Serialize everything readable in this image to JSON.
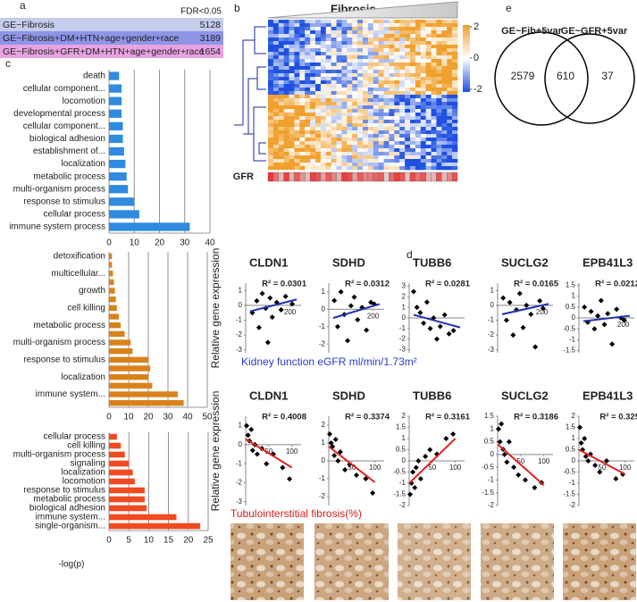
{
  "panel_labels": [
    "a",
    "b",
    "c",
    "d",
    "e"
  ],
  "table": {
    "header": "FDR<0.05",
    "rows": [
      [
        "GE~Fibrosis",
        5128
      ],
      [
        "GE~Fibrosis+DM+HTN+age+gender+race",
        3189
      ],
      [
        "GE~Fibrosis+GFR+DM+HTN+age+gender+race",
        1654
      ]
    ]
  },
  "heatmap": {
    "title": "Fibrosis",
    "colorbar_ticks": [
      2,
      0,
      -2
    ],
    "row_label": "GFR"
  },
  "venn": {
    "sets": [
      "GE~Fib+5var",
      "GE~GFR+5var"
    ],
    "counts": [
      2579,
      610,
      37
    ]
  },
  "d_labels": {
    "ylabel": "Relative gene expression",
    "top_xlabel": "Kidney function eGFR ml/min/1.73m²",
    "bottom_xlabel": "Tubulointerstitial fibrosis(%)"
  },
  "chart_data": [
    {
      "type": "bar",
      "orientation": "horizontal",
      "color": "#2e8be0",
      "grid": true,
      "xlim": [
        0,
        40
      ],
      "xticks": [
        0,
        10,
        20,
        30,
        40
      ],
      "categories": [
        "death",
        "cellular component...",
        "locomotion",
        "developmental process",
        "cellular component...",
        "biological adhesion",
        "establishment of...",
        "localization",
        "metabolic process",
        "multi-organism process",
        "response to stimulus",
        "cellular process",
        "immune system process"
      ],
      "values": [
        4,
        5,
        5,
        5,
        5.5,
        5.5,
        6,
        6.5,
        7,
        7.5,
        10,
        12,
        32
      ]
    },
    {
      "type": "bar",
      "orientation": "horizontal",
      "color": "#d9821a",
      "grid": true,
      "xlim": [
        0,
        50
      ],
      "xticks": [
        0,
        10,
        20,
        30,
        40,
        50
      ],
      "categories": [
        "detoxification",
        null,
        "multicellular...",
        null,
        "growth",
        null,
        "cell killing",
        null,
        "metabolic process",
        null,
        "multi-organism process",
        null,
        "response to stimulus",
        null,
        "localization",
        null,
        "immune system...",
        null
      ],
      "values": [
        1.5,
        1.5,
        2,
        2.5,
        3,
        3.5,
        4,
        5,
        6,
        8,
        11,
        12,
        20,
        21,
        20,
        22,
        35,
        38
      ]
    },
    {
      "type": "bar",
      "orientation": "horizontal",
      "color": "#f04a20",
      "grid": true,
      "xlim": [
        0,
        25
      ],
      "xticks": [
        0,
        5,
        10,
        15,
        20,
        25
      ],
      "xlabel": "-log(p)",
      "categories": [
        "cellular process",
        "cell killing",
        "multi-organism process",
        "signaling",
        "localization",
        "locomotion",
        "response to stimulus",
        "metabolic process",
        "biological adhesion",
        "immune system...",
        "single-organism..."
      ],
      "values": [
        2,
        3,
        4,
        5,
        6,
        6.5,
        9,
        9,
        9.5,
        17,
        23
      ]
    },
    {
      "type": "scatter",
      "title": "CLDN1",
      "annotation": "R² = 0.0301",
      "color": "#000000",
      "xlim": [
        0,
        250
      ],
      "ylim": [
        -3.2,
        1.5
      ],
      "xticks": [
        200
      ],
      "yticks": [
        1,
        0,
        -1,
        -2,
        -3
      ],
      "x": [
        30,
        50,
        60,
        75,
        90,
        100,
        110,
        120,
        140,
        160,
        180,
        210
      ],
      "values": [
        -0.5,
        0.3,
        -1.5,
        0.8,
        -0.2,
        -2.5,
        0.5,
        -0.8,
        0.2,
        -0.3,
        0.6,
        0.1
      ],
      "trend": {
        "color": "#1f2fb0",
        "x": [
          20,
          230
        ],
        "values": [
          -0.4,
          0.4
        ]
      }
    },
    {
      "type": "scatter",
      "title": "SDHD",
      "annotation": "R² = 0.0312",
      "color": "#000000",
      "xlim": [
        0,
        250
      ],
      "ylim": [
        -2.5,
        1.5
      ],
      "xticks": [
        200
      ],
      "yticks": [
        1,
        0,
        -1,
        -2
      ],
      "x": [
        25,
        40,
        55,
        70,
        85,
        100,
        115,
        130,
        150,
        170,
        190,
        205
      ],
      "values": [
        0.5,
        -1,
        1,
        -0.3,
        -1.8,
        0.2,
        0.7,
        -0.6,
        0.1,
        -1.2,
        0.4,
        0.3
      ],
      "trend": {
        "color": "#1f2fb0",
        "x": [
          20,
          230
        ],
        "values": [
          -0.5,
          0.3
        ]
      }
    },
    {
      "type": "scatter",
      "title": "TUBB6",
      "annotation": "R² = 0.0281",
      "color": "#000000",
      "xlim": [
        0,
        250
      ],
      "ylim": [
        -3.3,
        3.3
      ],
      "xticks": [],
      "yticks": [
        3,
        2,
        1,
        0,
        -1,
        -2,
        -3
      ],
      "x": [
        20,
        35,
        50,
        65,
        80,
        95,
        110,
        125,
        140,
        160,
        180,
        200
      ],
      "values": [
        2.5,
        1,
        0.5,
        -0.5,
        1.5,
        -1,
        0,
        -2,
        -0.8,
        0.3,
        -1.5,
        -1.2
      ],
      "trend": {
        "color": "#1f2fb0",
        "x": [
          20,
          230
        ],
        "values": [
          0.3,
          -0.9
        ]
      }
    },
    {
      "type": "scatter",
      "title": "SUCLG2",
      "annotation": "R² = 0.0165",
      "color": "#000000",
      "xlim": [
        0,
        250
      ],
      "ylim": [
        -3.2,
        1.5
      ],
      "xticks": [
        200
      ],
      "yticks": [
        1,
        0,
        -1,
        -2,
        -3
      ],
      "x": [
        25,
        40,
        55,
        70,
        85,
        100,
        115,
        130,
        150,
        170,
        190,
        205
      ],
      "values": [
        0.5,
        -1,
        0.2,
        -2,
        -0.3,
        0.8,
        -1.5,
        0,
        -0.6,
        -2.8,
        0.3,
        -0.2
      ],
      "trend": {
        "color": "#1f2fb0",
        "x": [
          20,
          230
        ],
        "values": [
          -0.6,
          0.1
        ]
      }
    },
    {
      "type": "scatter",
      "title": "EPB41L3",
      "annotation": "R² = 0.0212",
      "color": "#000000",
      "xlim": [
        0,
        250
      ],
      "ylim": [
        -1.6,
        1.6
      ],
      "xticks": [
        200
      ],
      "yticks": [
        1.5,
        1,
        0.5,
        0,
        -0.5,
        -1,
        -1.5
      ],
      "x": [
        25,
        40,
        55,
        70,
        85,
        100,
        115,
        130,
        150,
        170,
        190,
        205
      ],
      "values": [
        0.5,
        -0.2,
        0.3,
        -0.5,
        0.1,
        0.8,
        -0.3,
        0.2,
        -1.2,
        0.4,
        0,
        -0.1
      ],
      "trend": {
        "color": "#1f2fb0",
        "x": [
          20,
          230
        ],
        "values": [
          -0.15,
          0.1
        ]
      }
    },
    {
      "type": "scatter",
      "title": "CLDN1",
      "annotation": "R² = 0.4008",
      "color": "#000000",
      "xlim": [
        0,
        120
      ],
      "ylim": [
        -3.2,
        1.5
      ],
      "xticks": [
        50,
        100
      ],
      "yticks": [
        1,
        0,
        -1,
        -2,
        -3
      ],
      "x": [
        2,
        5,
        8,
        12,
        15,
        20,
        25,
        35,
        45,
        60,
        80,
        95
      ],
      "values": [
        1,
        0.5,
        0.2,
        0.8,
        -0.3,
        0,
        -0.5,
        -0.2,
        -1,
        -0.5,
        -1.2,
        -1.8
      ],
      "trend": {
        "color": "#e02020",
        "x": [
          0,
          100
        ],
        "values": [
          0.3,
          -1.2
        ]
      }
    },
    {
      "type": "scatter",
      "title": "SDHD",
      "annotation": "R² = 0.3374",
      "color": "#000000",
      "xlim": [
        0,
        120
      ],
      "ylim": [
        -2.5,
        2.5
      ],
      "xticks": [
        50,
        100
      ],
      "yticks": [
        2,
        1,
        0,
        -1,
        -2
      ],
      "x": [
        2,
        5,
        8,
        12,
        15,
        20,
        25,
        35,
        45,
        60,
        80,
        95
      ],
      "values": [
        1.5,
        1,
        0.8,
        0.3,
        1.2,
        0,
        0.5,
        -0.5,
        -0.2,
        -0.8,
        -1,
        -1.8
      ],
      "trend": {
        "color": "#e02020",
        "x": [
          0,
          100
        ],
        "values": [
          0.8,
          -1.2
        ]
      }
    },
    {
      "type": "scatter",
      "title": "TUBB6",
      "annotation": "R² = 0.3161",
      "color": "#000000",
      "xlim": [
        0,
        120
      ],
      "ylim": [
        -2,
        2
      ],
      "xticks": [
        50,
        100
      ],
      "yticks": [
        2,
        1.5,
        1,
        0.5,
        0,
        -0.5,
        -1,
        -1.5,
        -2
      ],
      "x": [
        2,
        5,
        8,
        12,
        15,
        20,
        25,
        35,
        45,
        60,
        80,
        95
      ],
      "values": [
        -1.5,
        -1,
        -0.5,
        -1.2,
        -0.3,
        0,
        -0.8,
        0.2,
        0.5,
        0.3,
        1,
        1.2
      ],
      "trend": {
        "color": "#e02020",
        "x": [
          0,
          100
        ],
        "values": [
          -1,
          1
        ]
      }
    },
    {
      "type": "scatter",
      "title": "SUCLG2",
      "annotation": "R² = 0.3186",
      "color": "#000000",
      "xlim": [
        0,
        120
      ],
      "ylim": [
        -2,
        1.5
      ],
      "xticks": [
        50,
        100
      ],
      "yticks": [
        1.5,
        1,
        0.5,
        0,
        -0.5,
        -1,
        -1.5,
        -2
      ],
      "x": [
        2,
        5,
        8,
        12,
        15,
        20,
        25,
        35,
        45,
        60,
        80,
        95
      ],
      "values": [
        1,
        0.5,
        1.2,
        0.2,
        0,
        -0.3,
        0.5,
        -0.5,
        -0.8,
        -1,
        -1.3,
        -1.1
      ],
      "trend": {
        "color": "#e02020",
        "x": [
          0,
          100
        ],
        "values": [
          0.4,
          -1.2
        ]
      }
    },
    {
      "type": "scatter",
      "title": "EPB41L3",
      "annotation": "R² = 0.325",
      "color": "#000000",
      "xlim": [
        0,
        120
      ],
      "ylim": [
        -2,
        2
      ],
      "xticks": [
        50,
        100
      ],
      "yticks": [
        2,
        1.5,
        1,
        0.5,
        0,
        -0.5,
        -1,
        -1.5,
        -2
      ],
      "x": [
        2,
        5,
        8,
        12,
        15,
        20,
        25,
        35,
        45,
        60,
        80,
        95
      ],
      "values": [
        1.5,
        0.8,
        0.5,
        1,
        0.2,
        0,
        0.3,
        -0.2,
        -0.5,
        0,
        -0.8,
        -0.6
      ],
      "trend": {
        "color": "#e02020",
        "x": [
          0,
          100
        ],
        "values": [
          0.5,
          -0.6
        ]
      }
    }
  ]
}
